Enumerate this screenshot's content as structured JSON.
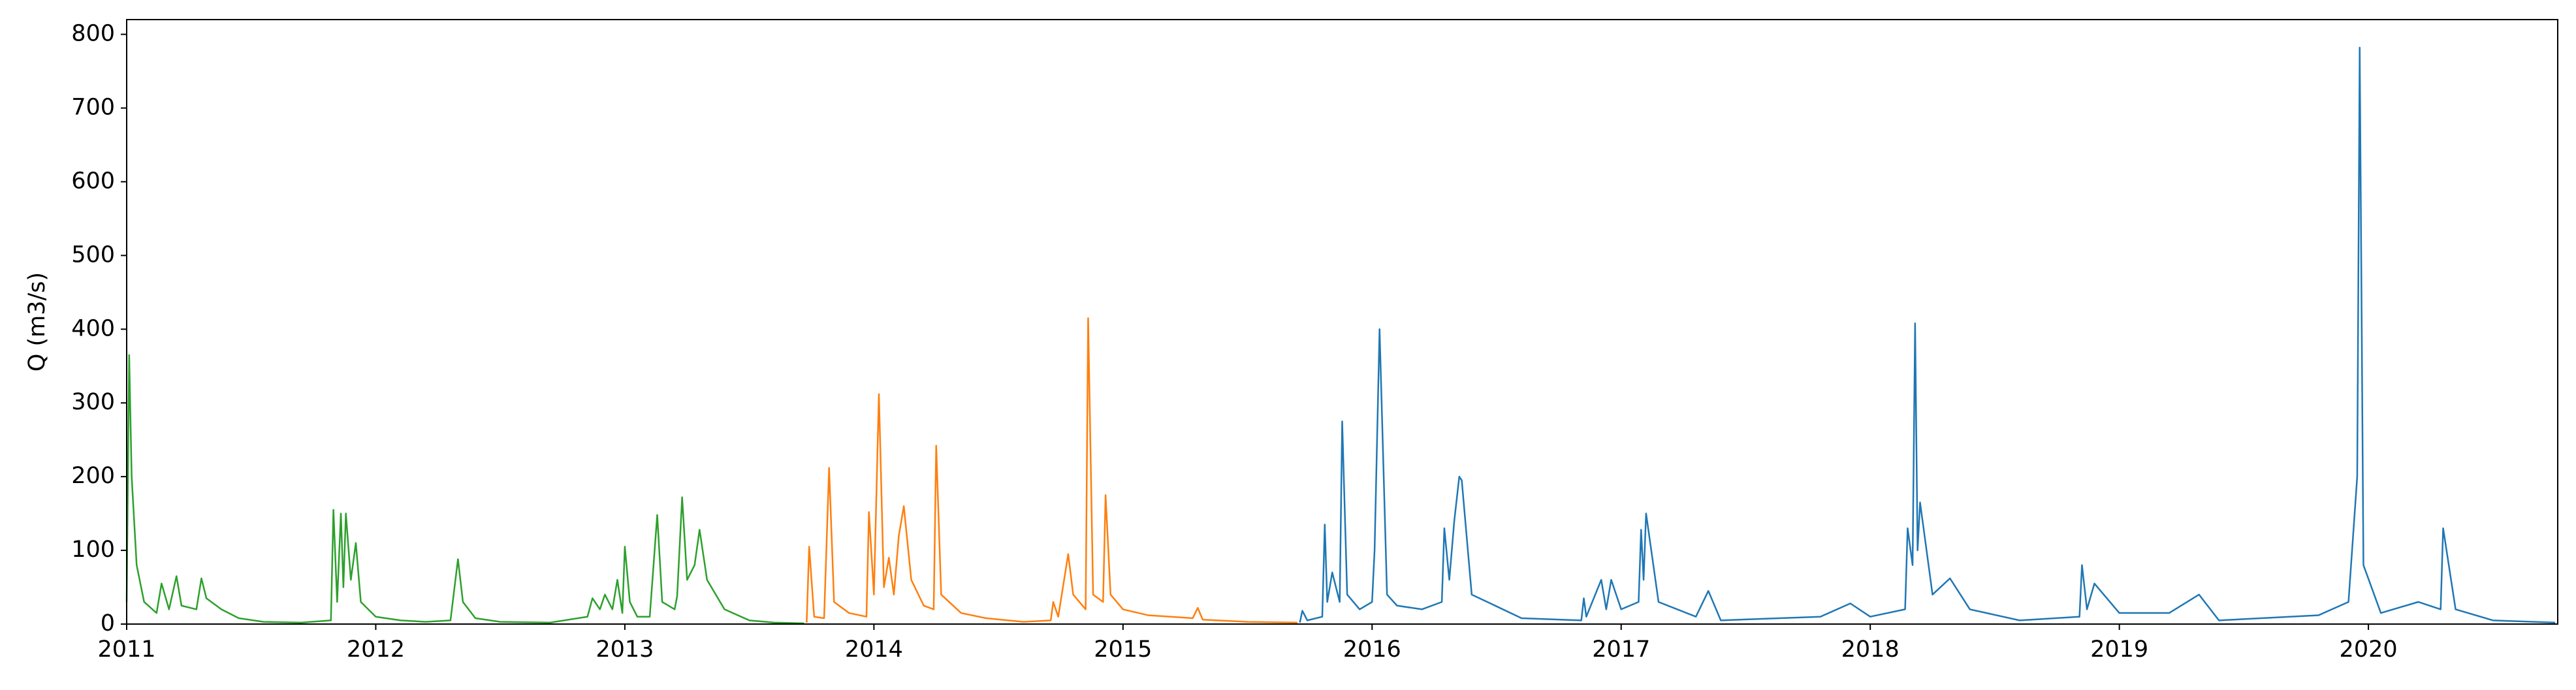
{
  "chart_data": {
    "type": "line",
    "y_label": "Q (m3/s)",
    "xlim": [
      2011,
      2020.76
    ],
    "xticks": [
      2011,
      2012,
      2013,
      2014,
      2015,
      2016,
      2017,
      2018,
      2019,
      2020
    ],
    "ylim": [
      0,
      820
    ],
    "yticks": [
      0,
      100,
      200,
      300,
      400,
      500,
      600,
      700,
      800
    ],
    "grid": false,
    "series": [
      {
        "color": "#2ca02c",
        "x": [
          2011.0,
          2011.01,
          2011.02,
          2011.04,
          2011.07,
          2011.12,
          2011.14,
          2011.17,
          2011.2,
          2011.22,
          2011.28,
          2011.3,
          2011.32,
          2011.38,
          2011.45,
          2011.55,
          2011.7,
          2011.82,
          2011.83,
          2011.845,
          2011.86,
          2011.87,
          2011.88,
          2011.9,
          2011.92,
          2011.94,
          2012.0,
          2012.1,
          2012.2,
          2012.3,
          2012.33,
          2012.35,
          2012.4,
          2012.5,
          2012.7,
          2012.85,
          2012.87,
          2012.9,
          2012.92,
          2012.95,
          2012.97,
          2012.99,
          2013.0,
          2013.02,
          2013.05,
          2013.1,
          2013.13,
          2013.15,
          2013.2,
          2013.21,
          2013.23,
          2013.25,
          2013.28,
          2013.3,
          2013.33,
          2013.4,
          2013.5,
          2013.6,
          2013.72
        ],
        "values": [
          30,
          365,
          200,
          80,
          30,
          15,
          55,
          20,
          65,
          25,
          20,
          62,
          35,
          20,
          8,
          3,
          2,
          5,
          155,
          30,
          150,
          50,
          150,
          60,
          110,
          30,
          10,
          5,
          3,
          5,
          88,
          30,
          8,
          3,
          2,
          10,
          35,
          20,
          40,
          20,
          60,
          15,
          105,
          30,
          10,
          10,
          148,
          30,
          20,
          38,
          172,
          60,
          80,
          128,
          60,
          20,
          5,
          2,
          1
        ]
      },
      {
        "color": "#ff7f0e",
        "x": [
          2013.73,
          2013.74,
          2013.76,
          2013.8,
          2013.82,
          2013.84,
          2013.9,
          2013.97,
          2013.98,
          2014.0,
          2014.02,
          2014.04,
          2014.06,
          2014.08,
          2014.1,
          2014.12,
          2014.15,
          2014.2,
          2014.24,
          2014.25,
          2014.27,
          2014.35,
          2014.45,
          2014.6,
          2014.71,
          2014.72,
          2014.74,
          2014.78,
          2014.8,
          2014.85,
          2014.86,
          2014.88,
          2014.92,
          2014.93,
          2014.95,
          2015.0,
          2015.1,
          2015.28,
          2015.3,
          2015.32,
          2015.5,
          2015.7
        ],
        "values": [
          2,
          105,
          10,
          8,
          212,
          30,
          15,
          10,
          152,
          40,
          312,
          50,
          90,
          40,
          120,
          160,
          60,
          25,
          20,
          242,
          40,
          15,
          8,
          3,
          5,
          30,
          10,
          95,
          40,
          20,
          415,
          40,
          30,
          175,
          40,
          20,
          12,
          8,
          22,
          6,
          3,
          2
        ]
      },
      {
        "color": "#1f77b4",
        "x": [
          2015.71,
          2015.72,
          2015.74,
          2015.8,
          2015.81,
          2015.82,
          2015.84,
          2015.87,
          2015.88,
          2015.9,
          2015.95,
          2016.0,
          2016.01,
          2016.03,
          2016.06,
          2016.1,
          2016.2,
          2016.28,
          2016.29,
          2016.31,
          2016.33,
          2016.35,
          2016.36,
          2016.4,
          2016.6,
          2016.84,
          2016.85,
          2016.86,
          2016.92,
          2016.94,
          2016.96,
          2017.0,
          2017.07,
          2017.08,
          2017.09,
          2017.1,
          2017.15,
          2017.3,
          2017.35,
          2017.4,
          2017.8,
          2017.92,
          2018.0,
          2018.14,
          2018.15,
          2018.17,
          2018.18,
          2018.19,
          2018.2,
          2018.25,
          2018.32,
          2018.4,
          2018.6,
          2018.84,
          2018.85,
          2018.87,
          2018.9,
          2019.0,
          2019.2,
          2019.32,
          2019.4,
          2019.8,
          2019.92,
          2019.955,
          2019.965,
          2019.98,
          2020.05,
          2020.2,
          2020.29,
          2020.3,
          2020.35,
          2020.5,
          2020.75
        ],
        "values": [
          2,
          18,
          5,
          10,
          135,
          30,
          70,
          30,
          275,
          40,
          20,
          30,
          100,
          400,
          40,
          25,
          20,
          30,
          130,
          60,
          140,
          200,
          195,
          40,
          8,
          5,
          35,
          10,
          60,
          20,
          60,
          20,
          30,
          128,
          60,
          150,
          30,
          10,
          45,
          5,
          10,
          28,
          10,
          20,
          130,
          80,
          408,
          100,
          165,
          40,
          62,
          20,
          5,
          10,
          80,
          20,
          55,
          15,
          15,
          40,
          5,
          12,
          30,
          200,
          782,
          80,
          15,
          30,
          20,
          130,
          20,
          5,
          2
        ]
      }
    ]
  }
}
